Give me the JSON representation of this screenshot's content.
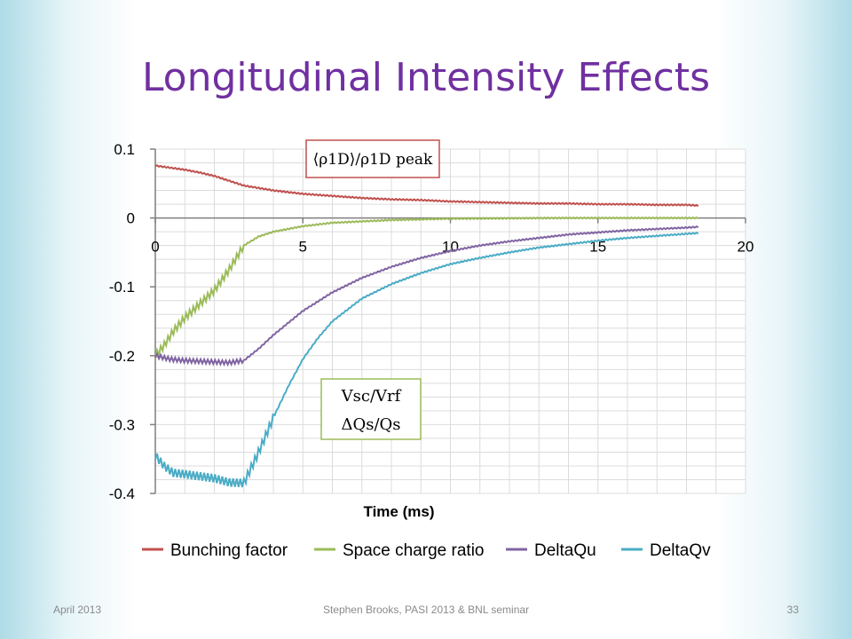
{
  "slide": {
    "title": "Longitudinal Intensity Effects",
    "footer_left": "April 2013",
    "footer_center": "Stephen Brooks, PASI 2013 & BNL seminar",
    "page_number": "33"
  },
  "chart_data": {
    "type": "line",
    "xlabel": "Time (ms)",
    "xlim": [
      0,
      20
    ],
    "ylim": [
      -0.4,
      0.1
    ],
    "xticks": [
      "0",
      "5",
      "10",
      "15",
      "20"
    ],
    "yticks": [
      "0.1",
      "0",
      "-0.1",
      "-0.2",
      "-0.3",
      "-0.4"
    ],
    "grid": true,
    "legend_position": "bottom",
    "annotations": [
      {
        "text": "⟨ρ1D⟩/ρ1D peak",
        "color": "#c0504d"
      },
      {
        "text": "Vsc/Vrf",
        "color": "#9bbb59"
      },
      {
        "text": "ΔQs/Qs",
        "color": "#9bbb59"
      }
    ],
    "series": [
      {
        "name": "Bunching factor",
        "color": "#c0504d",
        "x": [
          0,
          0.5,
          1,
          1.5,
          2,
          2.5,
          3,
          4,
          5,
          6,
          7,
          8,
          9,
          10,
          11,
          12,
          13,
          14,
          15,
          16,
          17,
          18,
          18.4
        ],
        "y": [
          0.076,
          0.073,
          0.07,
          0.066,
          0.061,
          0.054,
          0.047,
          0.04,
          0.035,
          0.032,
          0.029,
          0.027,
          0.026,
          0.024,
          0.023,
          0.022,
          0.021,
          0.021,
          0.02,
          0.02,
          0.019,
          0.019,
          0.018
        ]
      },
      {
        "name": "Space charge ratio",
        "color": "#9bbb59",
        "x": [
          0,
          0.3,
          0.6,
          1,
          1.5,
          2,
          2.5,
          3,
          3.5,
          4,
          5,
          6,
          7,
          8,
          9,
          10,
          12,
          14,
          16,
          18.4
        ],
        "y": [
          -0.2,
          -0.185,
          -0.165,
          -0.145,
          -0.125,
          -0.105,
          -0.075,
          -0.04,
          -0.027,
          -0.02,
          -0.012,
          -0.007,
          -0.005,
          -0.003,
          -0.002,
          -0.001,
          -0.0005,
          0,
          0,
          0
        ]
      },
      {
        "name": "DeltaQu",
        "color": "#8064a2",
        "x": [
          0,
          0.5,
          1,
          1.5,
          2,
          2.5,
          3,
          3.5,
          4,
          5,
          6,
          7,
          8,
          9,
          10,
          11,
          12,
          13,
          14,
          15,
          16,
          17,
          18,
          18.4
        ],
        "y": [
          -0.2,
          -0.205,
          -0.207,
          -0.208,
          -0.209,
          -0.21,
          -0.207,
          -0.19,
          -0.17,
          -0.135,
          -0.108,
          -0.087,
          -0.071,
          -0.058,
          -0.048,
          -0.04,
          -0.034,
          -0.029,
          -0.024,
          -0.021,
          -0.018,
          -0.016,
          -0.014,
          -0.013
        ]
      },
      {
        "name": "DeltaQv",
        "color": "#4bacc6",
        "x": [
          0,
          0.3,
          0.6,
          1,
          1.5,
          2,
          2.5,
          3,
          3.5,
          4,
          4.5,
          5,
          5.5,
          6,
          7,
          8,
          9,
          10,
          11,
          12,
          13,
          14,
          15,
          16,
          17,
          18,
          18.4
        ],
        "y": [
          -0.345,
          -0.36,
          -0.37,
          -0.372,
          -0.375,
          -0.378,
          -0.384,
          -0.385,
          -0.34,
          -0.29,
          -0.245,
          -0.205,
          -0.175,
          -0.15,
          -0.117,
          -0.096,
          -0.08,
          -0.067,
          -0.058,
          -0.05,
          -0.043,
          -0.038,
          -0.033,
          -0.029,
          -0.026,
          -0.023,
          -0.022
        ]
      }
    ]
  }
}
